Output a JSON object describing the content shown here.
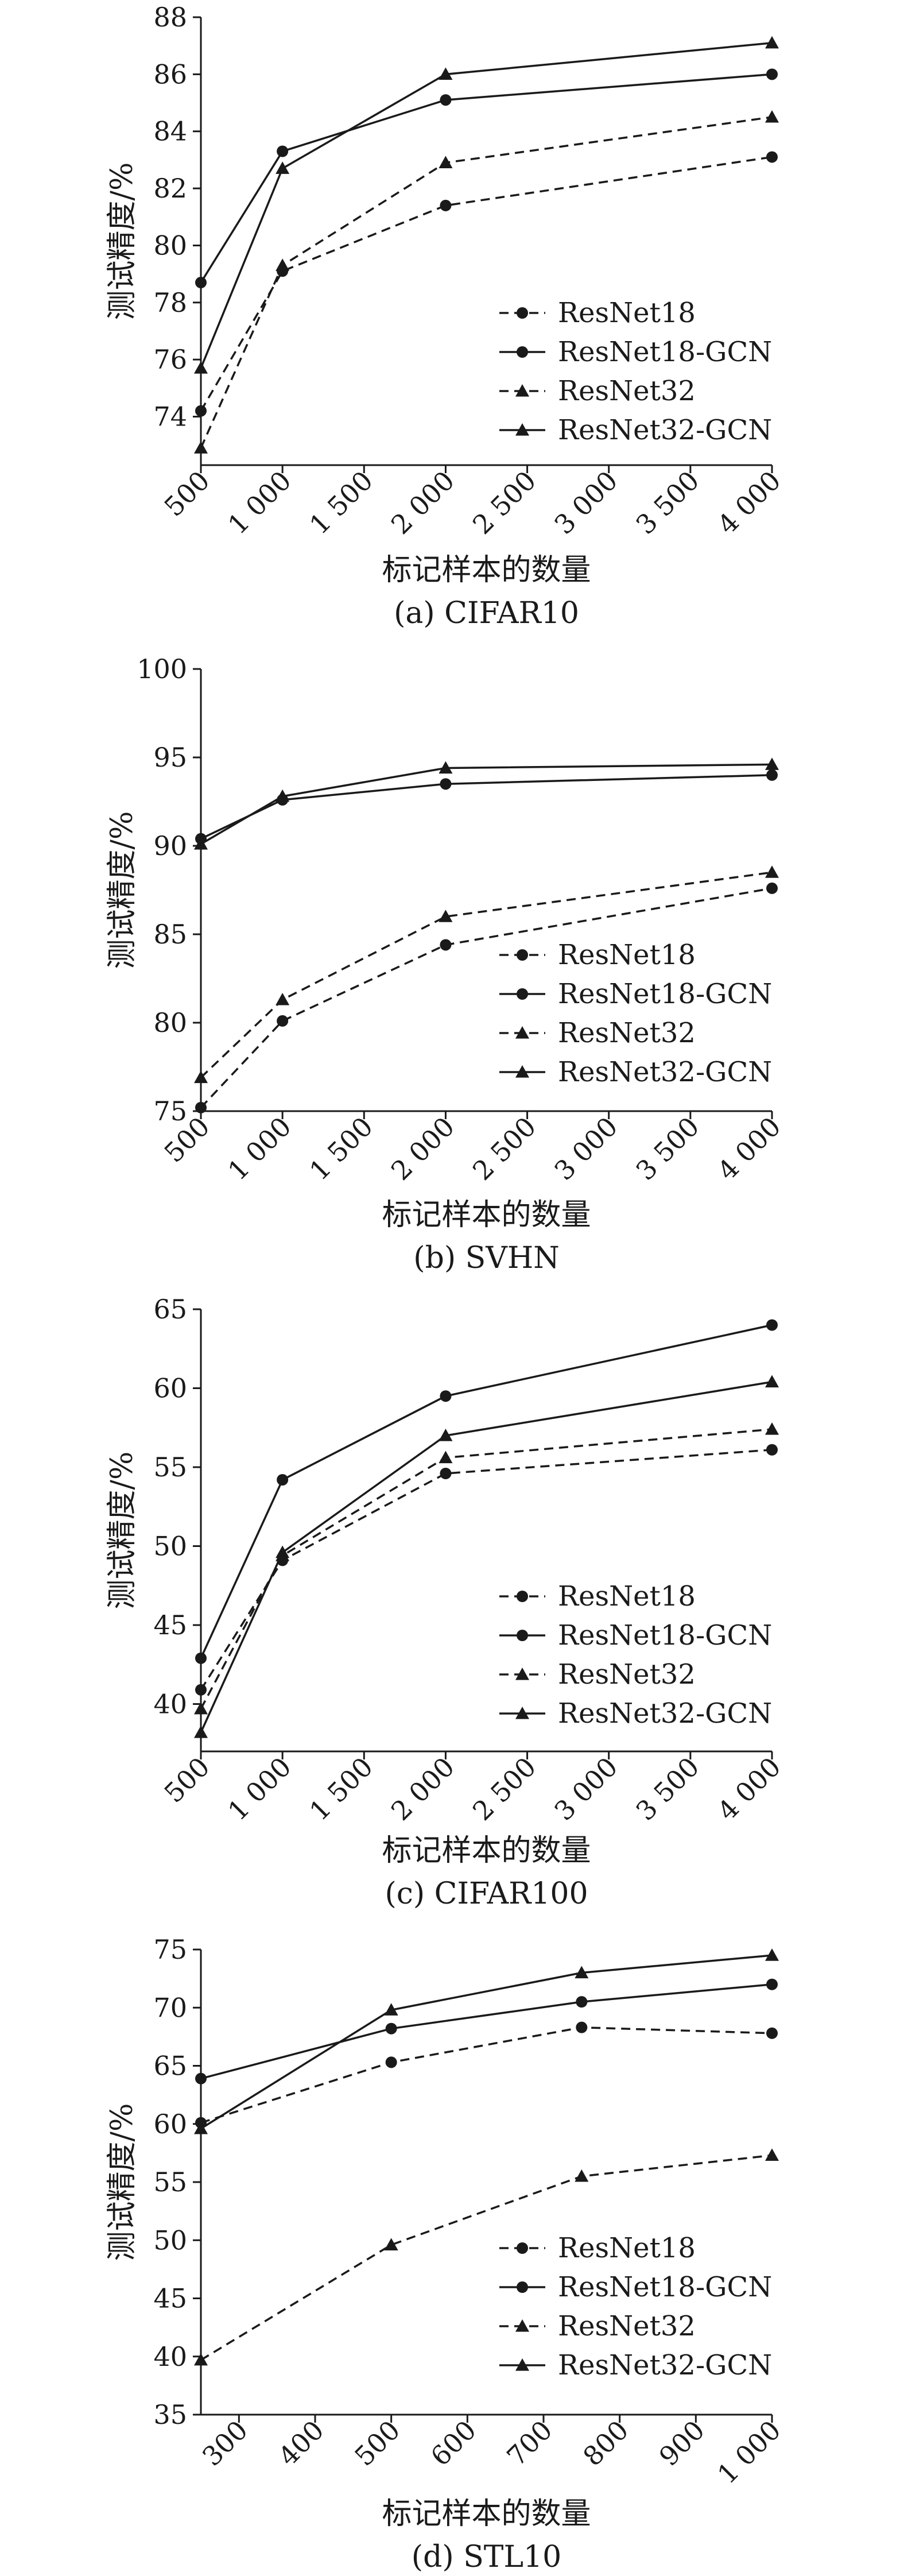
{
  "chart_data": [
    {
      "type": "line",
      "caption": "(a) CIFAR10",
      "xlabel": "标记样本的数量",
      "ylabel": "测试精度/%",
      "xlim": [
        500,
        4000
      ],
      "ylim": [
        72.3,
        88
      ],
      "xticks": [
        500,
        1000,
        1500,
        2000,
        2500,
        3000,
        3500,
        4000
      ],
      "xtick_labels": [
        "500",
        "1 000",
        "1 500",
        "2 000",
        "2 500",
        "3 000",
        "3 500",
        "4 000"
      ],
      "yticks": [
        74,
        76,
        78,
        80,
        82,
        84,
        86,
        88
      ],
      "ytick_labels": [
        "74",
        "76",
        "78",
        "80",
        "82",
        "84",
        "86",
        "88"
      ],
      "x": [
        500,
        1000,
        2000,
        4000
      ],
      "series": [
        {
          "name": "ResNet18",
          "values": [
            74.2,
            79.1,
            81.4,
            83.1
          ],
          "marker": "circle",
          "dash": "dashed"
        },
        {
          "name": "ResNet18-GCN",
          "values": [
            78.7,
            83.3,
            85.1,
            86.0
          ],
          "marker": "circle",
          "dash": "solid"
        },
        {
          "name": "ResNet32",
          "values": [
            72.9,
            79.3,
            82.9,
            84.5
          ],
          "marker": "triangle",
          "dash": "dashed"
        },
        {
          "name": "ResNet32-GCN",
          "values": [
            75.7,
            82.7,
            86.0,
            87.1
          ],
          "marker": "triangle",
          "dash": "solid"
        }
      ]
    },
    {
      "type": "line",
      "caption": "(b) SVHN",
      "xlabel": "标记样本的数量",
      "ylabel": "测试精度/%",
      "xlim": [
        500,
        4000
      ],
      "ylim": [
        75,
        100
      ],
      "xticks": [
        500,
        1000,
        1500,
        2000,
        2500,
        3000,
        3500,
        4000
      ],
      "xtick_labels": [
        "500",
        "1 000",
        "1 500",
        "2 000",
        "2 500",
        "3 000",
        "3 500",
        "4 000"
      ],
      "yticks": [
        75,
        80,
        85,
        90,
        95,
        100
      ],
      "ytick_labels": [
        "75",
        "80",
        "85",
        "90",
        "95",
        "100"
      ],
      "x": [
        500,
        1000,
        2000,
        4000
      ],
      "series": [
        {
          "name": "ResNet18",
          "values": [
            75.2,
            80.1,
            84.4,
            87.6
          ],
          "marker": "circle",
          "dash": "dashed"
        },
        {
          "name": "ResNet18-GCN",
          "values": [
            90.4,
            92.6,
            93.5,
            94.0
          ],
          "marker": "circle",
          "dash": "solid"
        },
        {
          "name": "ResNet32",
          "values": [
            76.9,
            81.3,
            86.0,
            88.5
          ],
          "marker": "triangle",
          "dash": "dashed"
        },
        {
          "name": "ResNet32-GCN",
          "values": [
            90.1,
            92.8,
            94.4,
            94.6
          ],
          "marker": "triangle",
          "dash": "solid"
        }
      ]
    },
    {
      "type": "line",
      "caption": "(c) CIFAR100",
      "xlabel": "标记样本的数量",
      "ylabel": "测试精度/%",
      "xlim": [
        500,
        4000
      ],
      "ylim": [
        37,
        65
      ],
      "xticks": [
        500,
        1000,
        1500,
        2000,
        2500,
        3000,
        3500,
        4000
      ],
      "xtick_labels": [
        "500",
        "1 000",
        "1 500",
        "2 000",
        "2 500",
        "3 000",
        "3 500",
        "4 000"
      ],
      "yticks": [
        40,
        45,
        50,
        55,
        60,
        65
      ],
      "ytick_labels": [
        "40",
        "45",
        "50",
        "55",
        "60",
        "65"
      ],
      "x": [
        500,
        1000,
        2000,
        4000
      ],
      "series": [
        {
          "name": "ResNet18",
          "values": [
            40.9,
            49.1,
            54.6,
            56.1
          ],
          "marker": "circle",
          "dash": "dashed"
        },
        {
          "name": "ResNet18-GCN",
          "values": [
            42.9,
            54.2,
            59.5,
            64.0
          ],
          "marker": "circle",
          "dash": "solid"
        },
        {
          "name": "ResNet32",
          "values": [
            39.7,
            49.4,
            55.6,
            57.4
          ],
          "marker": "triangle",
          "dash": "dashed"
        },
        {
          "name": "ResNet32-GCN",
          "values": [
            38.2,
            49.6,
            57.0,
            60.4
          ],
          "marker": "triangle",
          "dash": "solid"
        }
      ]
    },
    {
      "type": "line",
      "caption": "(d) STL10",
      "xlabel": "标记样本的数量",
      "ylabel": "测试精度/%",
      "xlim": [
        250,
        1000
      ],
      "ylim": [
        35,
        75
      ],
      "xticks": [
        300,
        400,
        500,
        600,
        700,
        800,
        900,
        1000
      ],
      "xtick_labels": [
        "300",
        "400",
        "500",
        "600",
        "700",
        "800",
        "900",
        "1 000"
      ],
      "yticks": [
        35,
        40,
        45,
        50,
        55,
        60,
        65,
        70,
        75
      ],
      "ytick_labels": [
        "35",
        "40",
        "45",
        "50",
        "55",
        "60",
        "65",
        "70",
        "75"
      ],
      "x": [
        250,
        500,
        750,
        1000
      ],
      "series": [
        {
          "name": "ResNet18",
          "values": [
            60.1,
            65.3,
            68.3,
            67.8
          ],
          "marker": "circle",
          "dash": "dashed"
        },
        {
          "name": "ResNet18-GCN",
          "values": [
            63.9,
            68.2,
            70.5,
            72.0
          ],
          "marker": "circle",
          "dash": "solid"
        },
        {
          "name": "ResNet32",
          "values": [
            39.7,
            49.6,
            55.5,
            57.3
          ],
          "marker": "triangle",
          "dash": "dashed"
        },
        {
          "name": "ResNet32-GCN",
          "values": [
            59.6,
            69.8,
            73.0,
            74.5
          ],
          "marker": "triangle",
          "dash": "solid"
        }
      ]
    }
  ]
}
